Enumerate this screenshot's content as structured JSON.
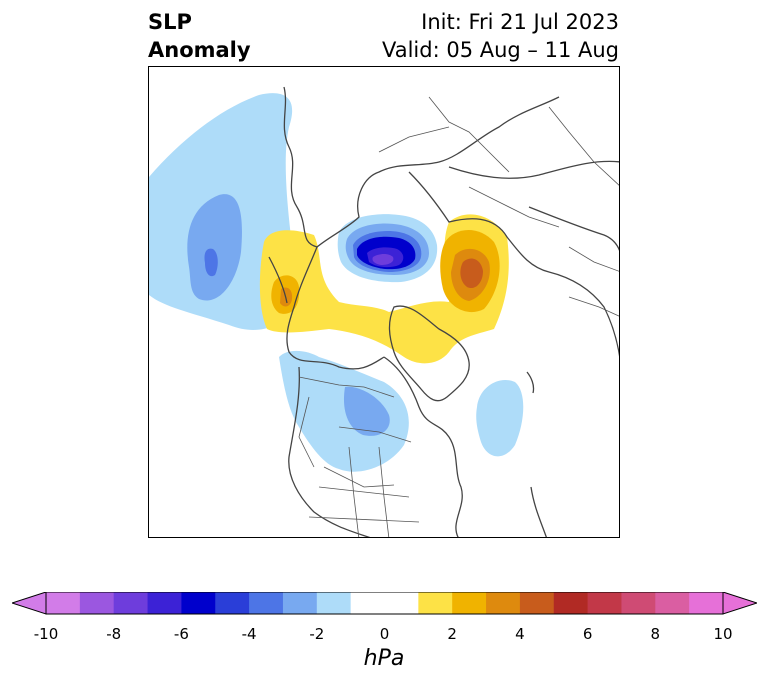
{
  "title": {
    "left_line1": "SLP",
    "left_line2": "Anomaly",
    "right_line1": "Init: Fri 21 Jul 2023",
    "right_line2": "Valid: 05 Aug – 11 Aug"
  },
  "colorbar": {
    "min": -10,
    "max": 10,
    "step": 1,
    "extend": "both",
    "unit": "hPa",
    "tick_values": [
      -10,
      -8,
      -6,
      -4,
      -2,
      0,
      2,
      4,
      6,
      8,
      10
    ],
    "tick_labels": [
      "-10",
      "-8",
      "-6",
      "-4",
      "-2",
      "0",
      "2",
      "4",
      "6",
      "8",
      "10"
    ],
    "colors": [
      "#d27ce8",
      "#9b57e0",
      "#6e3ddc",
      "#3c22d6",
      "#0000cc",
      "#2a3ed8",
      "#4d75e6",
      "#78a9f0",
      "#aedcf9",
      "#ffffff",
      "#ffffff",
      "#fde246",
      "#f0b300",
      "#de8a0e",
      "#c85c1c",
      "#b12a24",
      "#c23848",
      "#cf4b74",
      "#da5ea2",
      "#e670d8"
    ]
  },
  "map": {
    "projection": "north-polar-stereographic",
    "region": "Northern Hemisphere",
    "features": [
      "coastlines",
      "country-borders",
      "us-state-borders"
    ],
    "anomaly_centers": [
      {
        "name": "arctic-low",
        "sign": "negative",
        "peak_hpa": -10
      },
      {
        "name": "siberian-high",
        "sign": "positive",
        "peak_hpa": 6
      },
      {
        "name": "north-pacific-low",
        "sign": "negative",
        "peak_hpa": -4
      },
      {
        "name": "alaska-high",
        "sign": "positive",
        "peak_hpa": 4
      },
      {
        "name": "canada-low",
        "sign": "negative",
        "peak_hpa": -3
      },
      {
        "name": "north-atlantic-low",
        "sign": "negative",
        "peak_hpa": -2
      }
    ]
  }
}
